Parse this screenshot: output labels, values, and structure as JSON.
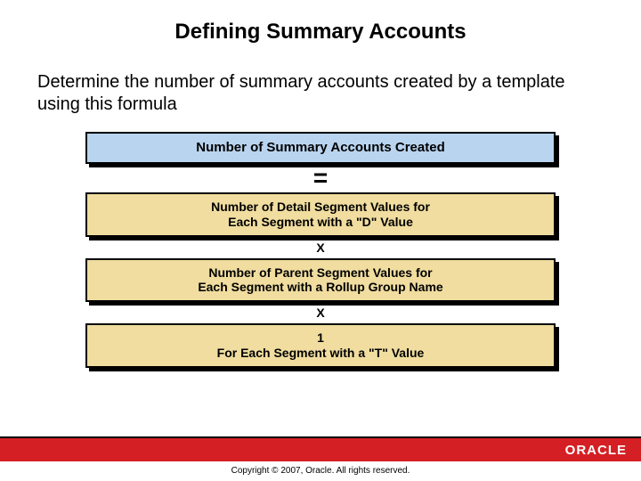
{
  "title": "Defining Summary Accounts",
  "subtitle": "Determine the number of summary accounts created by a template using this formula",
  "formula": {
    "result_box": {
      "text": "Number of Summary Accounts Created",
      "bg": "#b9d4ef"
    },
    "equals": "=",
    "terms": [
      {
        "line1": "Number of Detail Segment Values for",
        "line2": "Each Segment with a \"D\" Value",
        "bg": "#f0dd9f"
      },
      {
        "line1": "Number of Parent Segment Values for",
        "line2": "Each Segment with a Rollup Group Name",
        "bg": "#f0dd9f"
      },
      {
        "line1": "1",
        "line2": "For Each Segment with a \"T\" Value",
        "bg": "#f0dd9f"
      }
    ],
    "multiply": "X"
  },
  "footer": {
    "brand": "ORACLE",
    "brand_bg": "#d42024",
    "copyright": "Copyright © 2007, Oracle. All rights reserved."
  },
  "style": {
    "title_fontsize": 24,
    "subtitle_fontsize": 20,
    "box_border": "#000000",
    "slide_bg": "#ffffff"
  }
}
